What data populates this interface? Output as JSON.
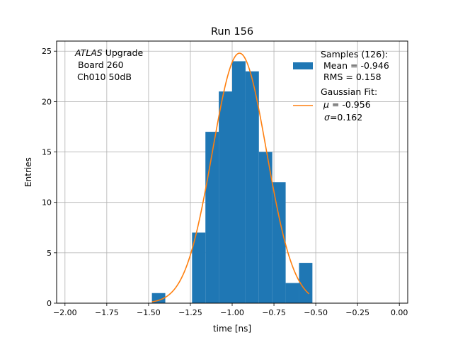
{
  "chart_data": {
    "type": "bar",
    "title": "Run 156",
    "xlabel": "time [ns]",
    "ylabel": "Entries",
    "xlim": [
      -2.05,
      0.05
    ],
    "ylim": [
      0,
      26
    ],
    "grid": true,
    "x_ticks": [
      -2.0,
      -1.75,
      -1.5,
      -1.25,
      -1.0,
      -0.75,
      -0.5,
      -0.25,
      0.0
    ],
    "y_ticks": [
      0,
      5,
      10,
      15,
      20,
      25
    ],
    "bin_edges": [
      -1.48,
      -1.24,
      -1.16,
      -1.08,
      -1.0,
      -0.92,
      -0.84,
      -0.76,
      -0.68,
      -0.6,
      -0.52
    ],
    "bins": [
      {
        "x0": -1.48,
        "x1": -1.4,
        "count": 1
      },
      {
        "x0": -1.24,
        "x1": -1.16,
        "count": 7
      },
      {
        "x0": -1.16,
        "x1": -1.08,
        "count": 17
      },
      {
        "x0": -1.08,
        "x1": -1.0,
        "count": 21
      },
      {
        "x0": -1.0,
        "x1": -0.92,
        "count": 24
      },
      {
        "x0": -0.92,
        "x1": -0.84,
        "count": 23
      },
      {
        "x0": -0.84,
        "x1": -0.76,
        "count": 15
      },
      {
        "x0": -0.76,
        "x1": -0.68,
        "count": 12
      },
      {
        "x0": -0.68,
        "x1": -0.6,
        "count": 2
      },
      {
        "x0": -0.6,
        "x1": -0.52,
        "count": 4
      }
    ],
    "gaussian_fit": {
      "mu": -0.956,
      "sigma": 0.162,
      "amplitude": 24.8,
      "x_range": [
        -1.48,
        -0.54
      ]
    },
    "colors": {
      "hist": "#1f77b4",
      "fit": "#ff7f0e"
    },
    "annotation": {
      "italic": "ATLAS",
      "rest": " Upgrade",
      "line2": "Board 260",
      "line3": "Ch010 50dB"
    },
    "legend": {
      "placement": "top-right",
      "hist_line1": "Samples (126):",
      "hist_line2": "Mean = -0.946",
      "hist_line3": "RMS = 0.158",
      "fit_line1": "Gaussian Fit:",
      "fit_mu_label": "μ",
      "fit_mu_value": " = -0.956",
      "fit_sigma_label": "σ",
      "fit_sigma_value": "=0.162"
    }
  }
}
